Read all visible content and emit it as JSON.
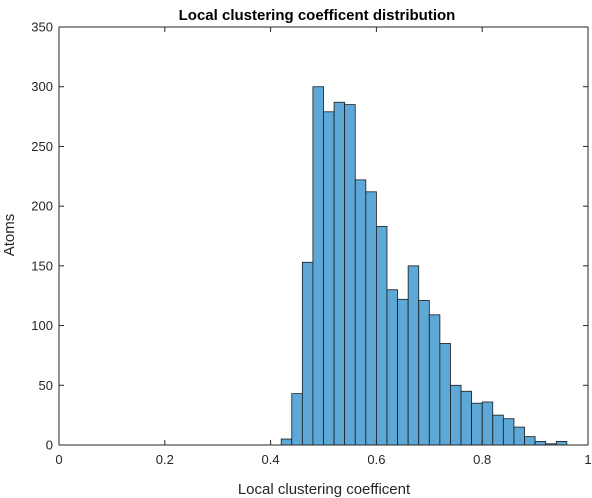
{
  "chart_data": {
    "type": "bar",
    "title": "Local clustering coefficent distribution",
    "xlabel": "Local clustering coefficent",
    "ylabel": "Atoms",
    "xlim": [
      0,
      1
    ],
    "ylim": [
      0,
      350
    ],
    "xticks": [
      0,
      0.2,
      0.4,
      0.6,
      0.8,
      1
    ],
    "xtick_labels": [
      "0",
      "0.2",
      "0.4",
      "0.6",
      "0.8",
      "1"
    ],
    "yticks": [
      0,
      50,
      100,
      150,
      200,
      250,
      300,
      350
    ],
    "ytick_labels": [
      "0",
      "50",
      "100",
      "150",
      "200",
      "250",
      "300",
      "350"
    ],
    "bin_width": 0.02,
    "bin_starts": [
      0.42,
      0.44,
      0.46,
      0.48,
      0.5,
      0.52,
      0.54,
      0.56,
      0.58,
      0.6,
      0.62,
      0.64,
      0.66,
      0.68,
      0.7,
      0.72,
      0.74,
      0.76,
      0.78,
      0.8,
      0.82,
      0.84,
      0.86,
      0.88,
      0.9,
      0.92,
      0.94
    ],
    "values": [
      5,
      43,
      153,
      300,
      279,
      287,
      285,
      222,
      212,
      183,
      130,
      122,
      150,
      121,
      109,
      85,
      50,
      45,
      35,
      36,
      25,
      22,
      15,
      7,
      3,
      1,
      3
    ],
    "bar_color": "#5ea8d8",
    "edge_color": "#1a1a1a",
    "grid": false
  }
}
